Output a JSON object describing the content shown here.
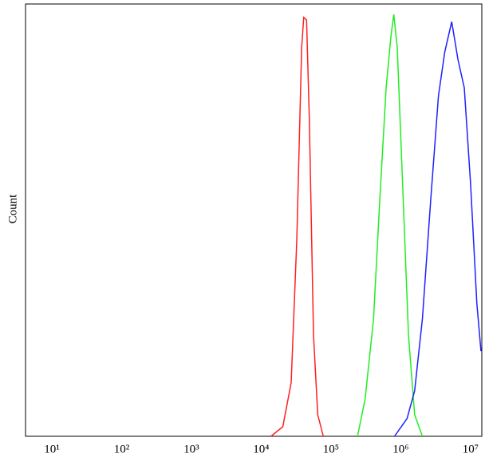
{
  "chart_data": {
    "type": "line",
    "y_label": "Count",
    "x_scale": "log",
    "xlim": [
      4.2,
      14500000
    ],
    "ylim": [
      0,
      100
    ],
    "xticks": [
      {
        "value": 10,
        "label": "10¹"
      },
      {
        "value": 100,
        "label": "10²"
      },
      {
        "value": 1000,
        "label": "10³"
      },
      {
        "value": 10000,
        "label": "10⁴"
      },
      {
        "value": 100000,
        "label": "10⁵"
      },
      {
        "value": 1000000,
        "label": "10⁶"
      },
      {
        "value": 10000000,
        "label": "10⁷"
      }
    ],
    "series": [
      {
        "color": "#ff2020",
        "x": [
          13800,
          20400,
          26900,
          32400,
          38000,
          40700,
          44700,
          49000,
          56200,
          64600,
          77600
        ],
        "values": [
          0,
          2.2,
          12.4,
          45.6,
          89.9,
          96.9,
          96.3,
          73.2,
          23.4,
          5.0,
          0
        ]
      },
      {
        "color": "#20ee20",
        "x": [
          240000,
          309000,
          407000,
          501000,
          617000,
          724000,
          794000,
          891000,
          1050000,
          1290000,
          1580000,
          2040000
        ],
        "values": [
          0,
          8.7,
          27.1,
          54.8,
          80.6,
          92.6,
          97.6,
          89.9,
          60.5,
          23.4,
          5.0,
          0
        ]
      },
      {
        "color": "#2020ff",
        "x": [
          813000,
          1230000,
          1580000,
          2040000,
          2690000,
          3470000,
          4270000,
          5370000,
          6610000,
          8130000,
          10000000,
          12300000,
          14100000
        ],
        "values": [
          0,
          4.1,
          10.5,
          27.1,
          54.8,
          78.8,
          88.9,
          95.9,
          87.1,
          80.6,
          58.5,
          30.8,
          19.7
        ]
      }
    ]
  }
}
